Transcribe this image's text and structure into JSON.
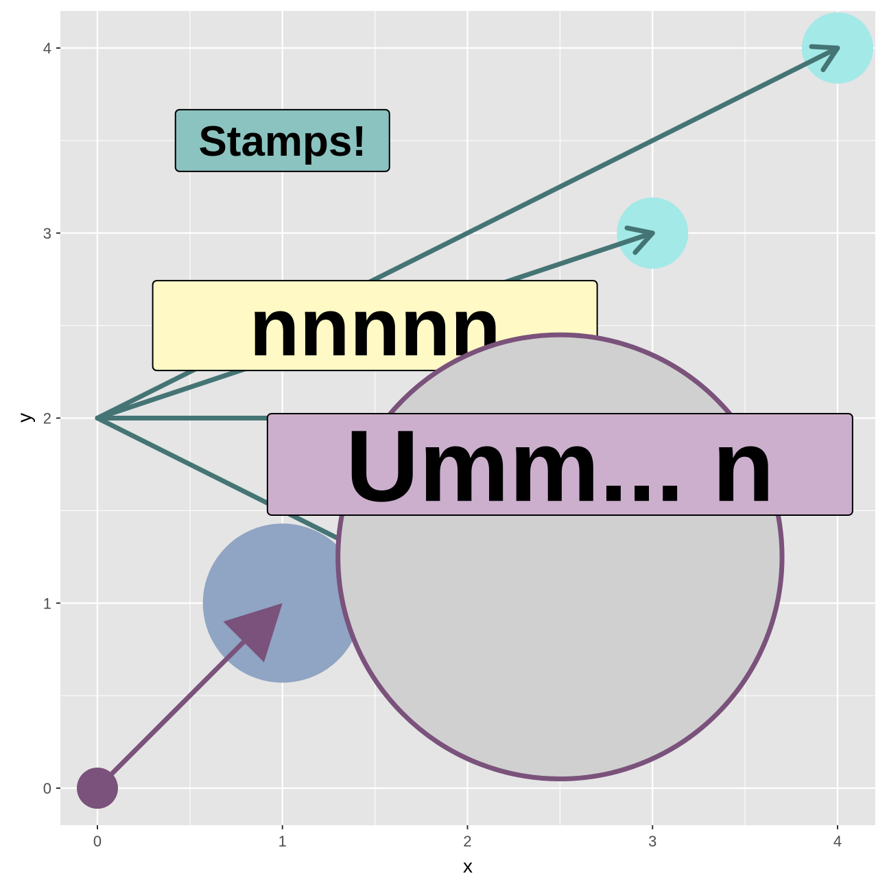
{
  "chart_data": {
    "type": "scatter",
    "title": "",
    "xlabel": "x",
    "ylabel": "y",
    "xlim": [
      -0.2,
      4.2
    ],
    "ylim": [
      -0.2,
      4.2
    ],
    "x_ticks": [
      "0",
      "1",
      "2",
      "3",
      "4"
    ],
    "y_ticks": [
      "0",
      "1",
      "2",
      "3",
      "4"
    ],
    "grid": true,
    "colors": {
      "panel": "#e5e5e5",
      "grid": "#ffffff",
      "cyan_points": "#a3e9e7",
      "teal_arrows": "#457474",
      "purple": "#7a527b",
      "blue_circle": "#90a4c3",
      "gray_circle": "#d0d0d0",
      "label_teal": "#8bc3c0",
      "label_yellow": "#fef9c5",
      "label_purple": "#ccafcd"
    },
    "points": [
      {
        "x": 2,
        "y": 1
      },
      {
        "x": 2,
        "y": 2
      },
      {
        "x": 3,
        "y": 3
      },
      {
        "x": 4,
        "y": 4
      }
    ],
    "origin_point": {
      "x": 0,
      "y": 0
    },
    "arrows": [
      {
        "from": [
          0,
          2
        ],
        "to": [
          2,
          1
        ]
      },
      {
        "from": [
          0,
          2
        ],
        "to": [
          2,
          2
        ]
      },
      {
        "from": [
          0,
          2
        ],
        "to": [
          3,
          3
        ]
      },
      {
        "from": [
          0,
          2
        ],
        "to": [
          4,
          4
        ]
      }
    ],
    "big_arrow": {
      "from": [
        0,
        0
      ],
      "to": [
        1,
        1
      ]
    },
    "blue_circle": {
      "x": 1,
      "y": 1,
      "r": 0.43
    },
    "gray_circle": {
      "x": 2.5,
      "y": 1.25,
      "r": 1.2
    },
    "labels": [
      {
        "text": "Stamps!",
        "x": 1.0,
        "y": 3.5
      },
      {
        "text": "nnnnn",
        "x": 1.5,
        "y": 2.5
      },
      {
        "text": "Umm...  n",
        "x": 2.5,
        "y": 1.75
      }
    ]
  }
}
